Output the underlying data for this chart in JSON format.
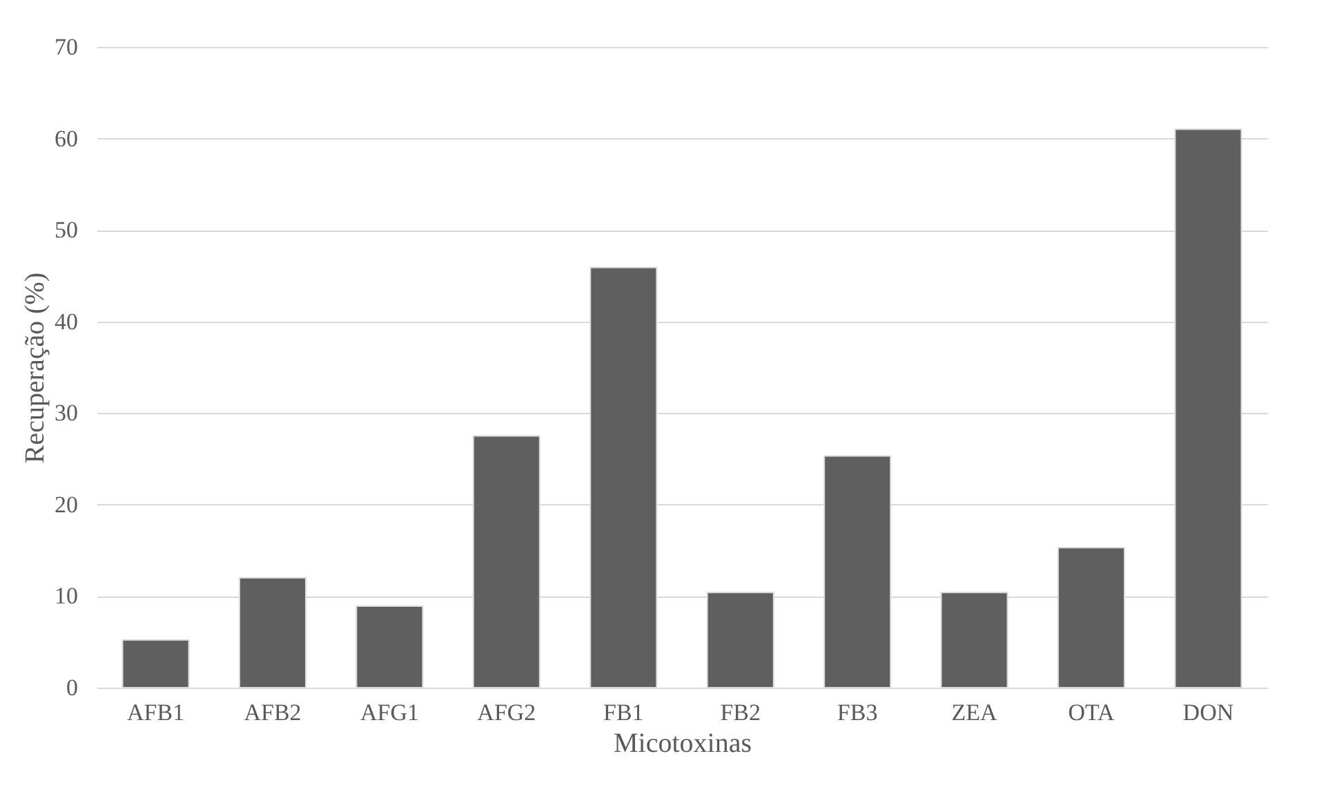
{
  "chart_data": {
    "type": "bar",
    "xlabel": "Micotoxinas",
    "ylabel": "Recuperação (%)",
    "categories": [
      "AFB1",
      "AFB2",
      "AFG1",
      "AFG2",
      "FB1",
      "FB2",
      "FB3",
      "ZEA",
      "OTA",
      "DON"
    ],
    "values": [
      5.2,
      12.0,
      8.9,
      27.5,
      45.9,
      10.4,
      25.3,
      10.4,
      15.3,
      61.0
    ],
    "color": "#5f5f5f",
    "ylim": [
      0,
      70
    ],
    "yticks": [
      0,
      10,
      20,
      30,
      40,
      50,
      60,
      70
    ],
    "grid": "y"
  }
}
